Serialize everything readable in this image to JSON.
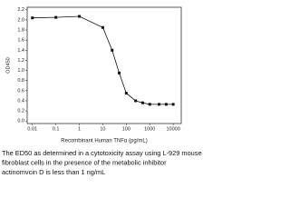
{
  "chart_data": {
    "type": "scatter",
    "x_label": "Recombinant Human TNFα (pg/mL)",
    "y_label": "OD450",
    "x": [
      0.01,
      0.1,
      1,
      10,
      25,
      50,
      100,
      250,
      500,
      1000,
      2500,
      5000,
      10000
    ],
    "values": [
      2.04,
      2.05,
      2.07,
      1.85,
      1.4,
      0.95,
      0.55,
      0.4,
      0.36,
      0.33,
      0.33,
      0.33,
      0.33
    ],
    "color": "#111111",
    "x_log": true,
    "xlim": [
      0.006,
      22000
    ],
    "xticks": [
      0.01,
      0.1,
      1,
      10,
      100,
      1000,
      10000
    ],
    "ylim": [
      -0.05,
      2.25
    ],
    "yticks": [
      {
        "value": 0,
        "label": "0.0"
      },
      0.2,
      0.4,
      0.6,
      0.8,
      {
        "value": 1,
        "label": "1.0"
      },
      1.2,
      1.4,
      1.6,
      1.8,
      {
        "value": 2,
        "label": "2.0"
      },
      2.2
    ]
  },
  "caption": [
    "The ED50 as determined in a cytotoxicity assay using L-929 mouse",
    "fibroblast cells in the presence of the metabolic inhibitor",
    "actinomvcin D is less than 1 ng/mL"
  ]
}
